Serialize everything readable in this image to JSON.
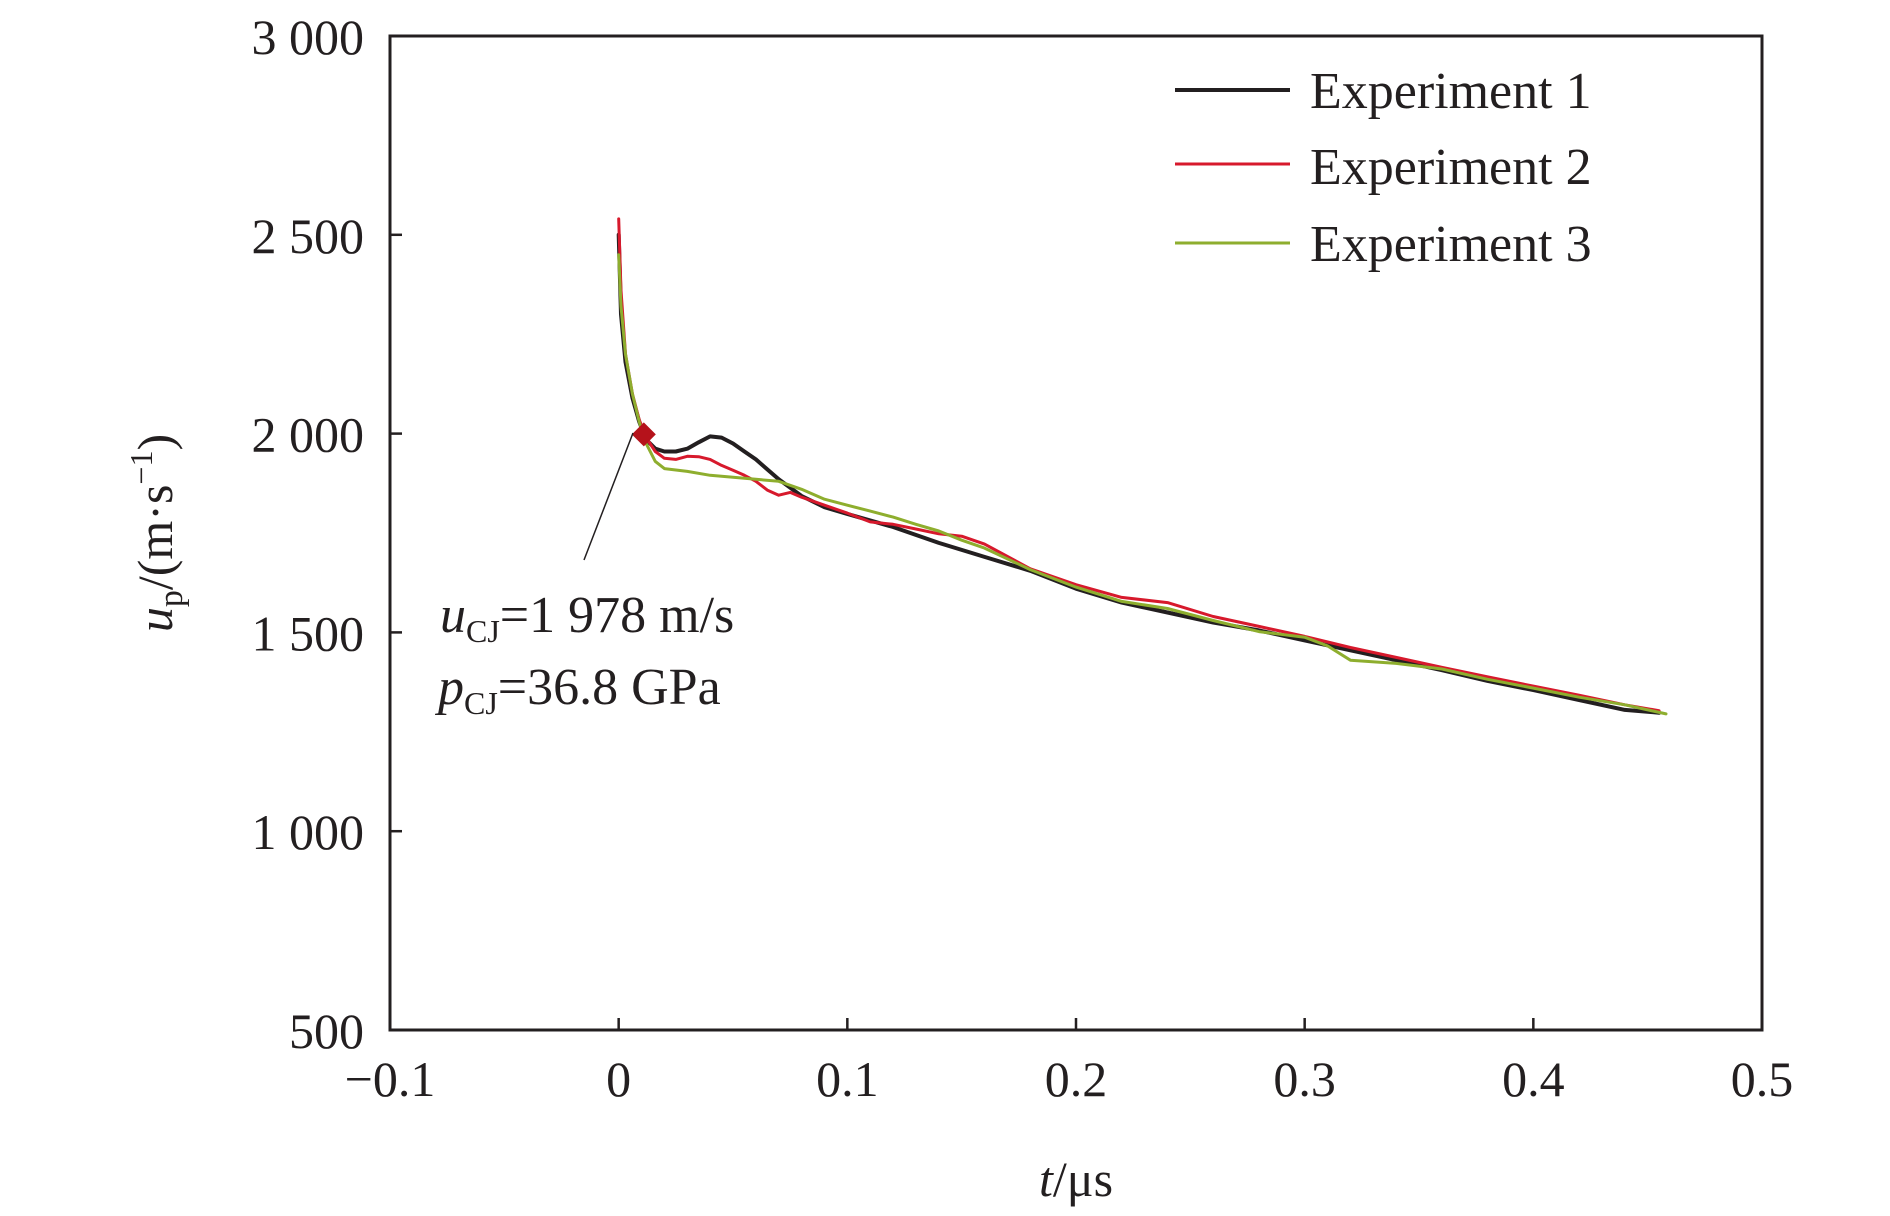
{
  "chart_data": {
    "type": "line",
    "xlabel": {
      "var": "t",
      "unit": "/μs"
    },
    "ylabel": {
      "var": "u",
      "sub": "p",
      "unit_pre": "/(m·s",
      "unit_sup": "−1",
      "unit_post": ")"
    },
    "xlim": [
      -0.1,
      0.5
    ],
    "ylim": [
      500,
      3000
    ],
    "xticks": [
      -0.1,
      0,
      0.1,
      0.2,
      0.3,
      0.4,
      0.5
    ],
    "xtick_labels": [
      "−0.1",
      "0",
      "0.1",
      "0.2",
      "0.3",
      "0.4",
      "0.5"
    ],
    "yticks": [
      500,
      1000,
      1500,
      2000,
      2500,
      3000
    ],
    "ytick_labels": [
      "500",
      "1 000",
      "1 500",
      "2 000",
      "2 500",
      "3 000"
    ],
    "grid": false,
    "legend_position": "top-right",
    "series": [
      {
        "name": "Experiment 1",
        "color": "#231f20",
        "points": [
          [
            0.0,
            2500
          ],
          [
            0.001,
            2300
          ],
          [
            0.003,
            2180
          ],
          [
            0.006,
            2090
          ],
          [
            0.009,
            2030
          ],
          [
            0.012,
            1985
          ],
          [
            0.016,
            1962
          ],
          [
            0.02,
            1955
          ],
          [
            0.025,
            1955
          ],
          [
            0.03,
            1962
          ],
          [
            0.035,
            1978
          ],
          [
            0.04,
            1993
          ],
          [
            0.045,
            1990
          ],
          [
            0.05,
            1975
          ],
          [
            0.055,
            1955
          ],
          [
            0.06,
            1935
          ],
          [
            0.065,
            1910
          ],
          [
            0.07,
            1885
          ],
          [
            0.08,
            1843
          ],
          [
            0.09,
            1815
          ],
          [
            0.1,
            1798
          ],
          [
            0.12,
            1765
          ],
          [
            0.14,
            1725
          ],
          [
            0.16,
            1690
          ],
          [
            0.18,
            1655
          ],
          [
            0.2,
            1610
          ],
          [
            0.22,
            1575
          ],
          [
            0.24,
            1550
          ],
          [
            0.26,
            1525
          ],
          [
            0.28,
            1505
          ],
          [
            0.3,
            1480
          ],
          [
            0.32,
            1455
          ],
          [
            0.34,
            1430
          ],
          [
            0.36,
            1405
          ],
          [
            0.38,
            1378
          ],
          [
            0.4,
            1355
          ],
          [
            0.42,
            1330
          ],
          [
            0.44,
            1305
          ],
          [
            0.455,
            1298
          ]
        ]
      },
      {
        "name": "Experiment 2",
        "color": "#d7192c",
        "points": [
          [
            0.0,
            2540
          ],
          [
            0.001,
            2360
          ],
          [
            0.003,
            2200
          ],
          [
            0.006,
            2100
          ],
          [
            0.009,
            2035
          ],
          [
            0.012,
            1990
          ],
          [
            0.016,
            1955
          ],
          [
            0.02,
            1938
          ],
          [
            0.025,
            1935
          ],
          [
            0.03,
            1943
          ],
          [
            0.035,
            1942
          ],
          [
            0.04,
            1935
          ],
          [
            0.045,
            1920
          ],
          [
            0.05,
            1908
          ],
          [
            0.055,
            1895
          ],
          [
            0.06,
            1880
          ],
          [
            0.065,
            1858
          ],
          [
            0.07,
            1845
          ],
          [
            0.075,
            1852
          ],
          [
            0.08,
            1840
          ],
          [
            0.09,
            1820
          ],
          [
            0.1,
            1800
          ],
          [
            0.11,
            1778
          ],
          [
            0.12,
            1772
          ],
          [
            0.13,
            1760
          ],
          [
            0.14,
            1748
          ],
          [
            0.15,
            1742
          ],
          [
            0.16,
            1722
          ],
          [
            0.18,
            1660
          ],
          [
            0.2,
            1620
          ],
          [
            0.22,
            1588
          ],
          [
            0.24,
            1575
          ],
          [
            0.26,
            1540
          ],
          [
            0.28,
            1515
          ],
          [
            0.3,
            1490
          ],
          [
            0.32,
            1462
          ],
          [
            0.34,
            1437
          ],
          [
            0.36,
            1412
          ],
          [
            0.38,
            1388
          ],
          [
            0.4,
            1365
          ],
          [
            0.42,
            1342
          ],
          [
            0.44,
            1318
          ],
          [
            0.455,
            1303
          ]
        ]
      },
      {
        "name": "Experiment 3",
        "color": "#8eae2e",
        "points": [
          [
            0.0,
            2450
          ],
          [
            0.001,
            2320
          ],
          [
            0.003,
            2200
          ],
          [
            0.006,
            2100
          ],
          [
            0.009,
            2030
          ],
          [
            0.012,
            1975
          ],
          [
            0.016,
            1930
          ],
          [
            0.02,
            1912
          ],
          [
            0.03,
            1905
          ],
          [
            0.04,
            1895
          ],
          [
            0.05,
            1890
          ],
          [
            0.06,
            1885
          ],
          [
            0.07,
            1880
          ],
          [
            0.08,
            1860
          ],
          [
            0.09,
            1835
          ],
          [
            0.1,
            1820
          ],
          [
            0.11,
            1805
          ],
          [
            0.12,
            1790
          ],
          [
            0.13,
            1772
          ],
          [
            0.14,
            1755
          ],
          [
            0.15,
            1732
          ],
          [
            0.16,
            1712
          ],
          [
            0.18,
            1658
          ],
          [
            0.2,
            1614
          ],
          [
            0.22,
            1578
          ],
          [
            0.24,
            1560
          ],
          [
            0.26,
            1530
          ],
          [
            0.28,
            1502
          ],
          [
            0.3,
            1488
          ],
          [
            0.31,
            1466
          ],
          [
            0.32,
            1430
          ],
          [
            0.34,
            1422
          ],
          [
            0.36,
            1408
          ],
          [
            0.38,
            1382
          ],
          [
            0.4,
            1360
          ],
          [
            0.42,
            1337
          ],
          [
            0.44,
            1318
          ],
          [
            0.458,
            1295
          ]
        ]
      }
    ],
    "marker": {
      "x": 0.011,
      "y": 1998,
      "shape": "diamond",
      "color": "#b5121b"
    },
    "annotation": {
      "line1": {
        "var": "u",
        "sub": "CJ",
        "text": "=1 978 m/s"
      },
      "line2": {
        "var": "p",
        "sub": "CJ",
        "text": "=36.8 GPa"
      }
    }
  }
}
